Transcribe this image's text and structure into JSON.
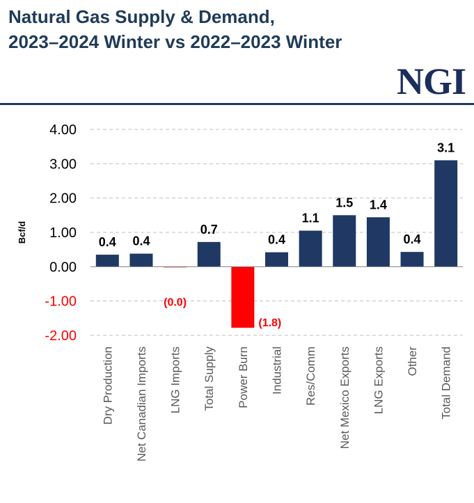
{
  "header": {
    "title_line1": "Natural Gas Supply & Demand,",
    "title_line2": "2023–2024 Winter vs 2022–2023 Winter",
    "logo": "NGI"
  },
  "chart_data": {
    "type": "bar",
    "categories": [
      "Dry Production",
      "Net Canadian Imports",
      "LNG Imports",
      "Total Supply",
      "Power Burn",
      "Industrial",
      "Res/Comm",
      "Net Mexico Exports",
      "LNG Exports",
      "Other",
      "Total Demand"
    ],
    "values": [
      0.35,
      0.38,
      -0.02,
      0.72,
      -1.78,
      0.42,
      1.05,
      1.5,
      1.44,
      0.43,
      3.1
    ],
    "data_labels": [
      "0.4",
      "0.4",
      "(0.0)",
      "0.7",
      "(1.8)",
      "0.4",
      "1.1",
      "1.5",
      "1.4",
      "0.4",
      "3.1"
    ],
    "ylabel": "Bcf/d",
    "ylim": [
      -2,
      4
    ],
    "yticks": [
      4,
      3,
      2,
      1,
      0,
      -1,
      -2
    ],
    "ytick_labels": [
      "4.00",
      "3.00",
      "2.00",
      "1.00",
      "0.00",
      "-1.00",
      "-2.00"
    ],
    "grid": true,
    "colors": {
      "positive": "#1f3864",
      "negative": "#ff0000",
      "negative_text": "#ff0000",
      "axis_text": "#000000",
      "category_text": "#595959",
      "grid": "#bfbfbf"
    }
  }
}
